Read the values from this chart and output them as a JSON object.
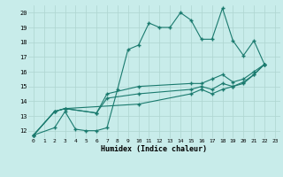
{
  "title": "",
  "xlabel": "Humidex (Indice chaleur)",
  "ylabel": "",
  "bg_color": "#c8ecea",
  "grid_color": "#aed4d0",
  "line_color": "#1a7a6e",
  "xlim": [
    -0.5,
    23.5
  ],
  "ylim": [
    11.5,
    20.5
  ],
  "xticks": [
    0,
    1,
    2,
    3,
    4,
    5,
    6,
    7,
    8,
    9,
    10,
    11,
    12,
    13,
    14,
    15,
    16,
    17,
    18,
    19,
    20,
    21,
    22,
    23
  ],
  "yticks": [
    12,
    13,
    14,
    15,
    16,
    17,
    18,
    19,
    20
  ],
  "line1_x": [
    0,
    2,
    3,
    4,
    5,
    6,
    7,
    8,
    9,
    10,
    11,
    12,
    13,
    14,
    15,
    16,
    17,
    18,
    19,
    20,
    21,
    22
  ],
  "line1_y": [
    11.7,
    12.2,
    13.3,
    12.1,
    12.0,
    12.0,
    12.2,
    14.8,
    17.5,
    17.8,
    19.3,
    19.0,
    19.0,
    20.0,
    19.5,
    18.2,
    18.2,
    20.3,
    18.1,
    17.1,
    18.1,
    16.5
  ],
  "line2_x": [
    0,
    2,
    3,
    6,
    7,
    10,
    15,
    16,
    17,
    18,
    19,
    20,
    21,
    22
  ],
  "line2_y": [
    11.7,
    13.3,
    13.5,
    13.2,
    14.5,
    15.0,
    15.2,
    15.2,
    15.5,
    15.8,
    15.3,
    15.5,
    16.0,
    16.5
  ],
  "line3_x": [
    0,
    2,
    3,
    6,
    7,
    10,
    15,
    16,
    17,
    18,
    19,
    20,
    21,
    22
  ],
  "line3_y": [
    11.7,
    13.3,
    13.5,
    13.2,
    14.2,
    14.5,
    14.8,
    15.0,
    14.8,
    15.2,
    15.0,
    15.3,
    15.8,
    16.5
  ],
  "line4_x": [
    0,
    2,
    3,
    10,
    15,
    16,
    17,
    18,
    19,
    20,
    21,
    22
  ],
  "line4_y": [
    11.7,
    13.3,
    13.5,
    13.8,
    14.5,
    14.8,
    14.5,
    14.8,
    15.0,
    15.2,
    15.8,
    16.5
  ]
}
